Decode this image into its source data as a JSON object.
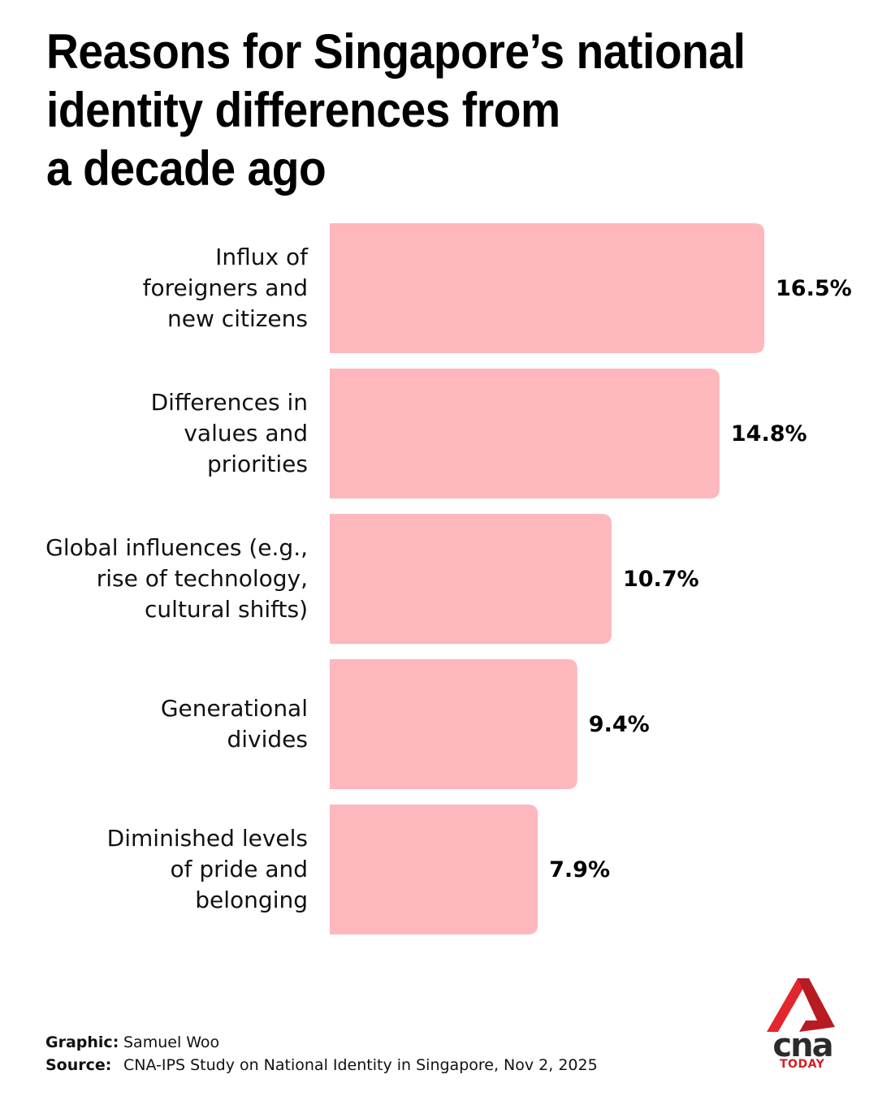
{
  "title_lines": [
    "Reasons for Singapore’s national",
    "identity differences from",
    "a decade ago"
  ],
  "chart_data": {
    "type": "bar",
    "orientation": "horizontal",
    "title": "Reasons for Singapore’s national identity differences from a decade ago",
    "xlabel": "",
    "ylabel": "",
    "categories": [
      [
        "Influx of",
        "foreigners and",
        "new citizens"
      ],
      [
        "Differences in",
        "values and",
        "priorities"
      ],
      [
        "Global influences (e.g.,",
        "rise of technology,",
        "cultural shifts)"
      ],
      [
        "Generational",
        "divides"
      ],
      [
        "Diminished levels",
        "of pride and",
        "belonging"
      ]
    ],
    "values": [
      16.5,
      14.8,
      10.7,
      9.4,
      7.9
    ],
    "value_labels": [
      "16.5%",
      "14.8%",
      "10.7%",
      "9.4%",
      "7.9%"
    ],
    "unit": "%",
    "bar_color": "#fdb7bd",
    "grid": false,
    "legend": "none"
  },
  "footer": {
    "graphic_label": "Graphic:",
    "graphic_value": "Samuel Woo",
    "source_label": "Source:",
    "source_value": "CNA-IPS Study on National Identity in Singapore, Nov 2, 2025"
  },
  "logo": {
    "wordmark": "cna",
    "sub": "TODAY",
    "red": "#d21f26",
    "dark": "#2b2b2b"
  }
}
